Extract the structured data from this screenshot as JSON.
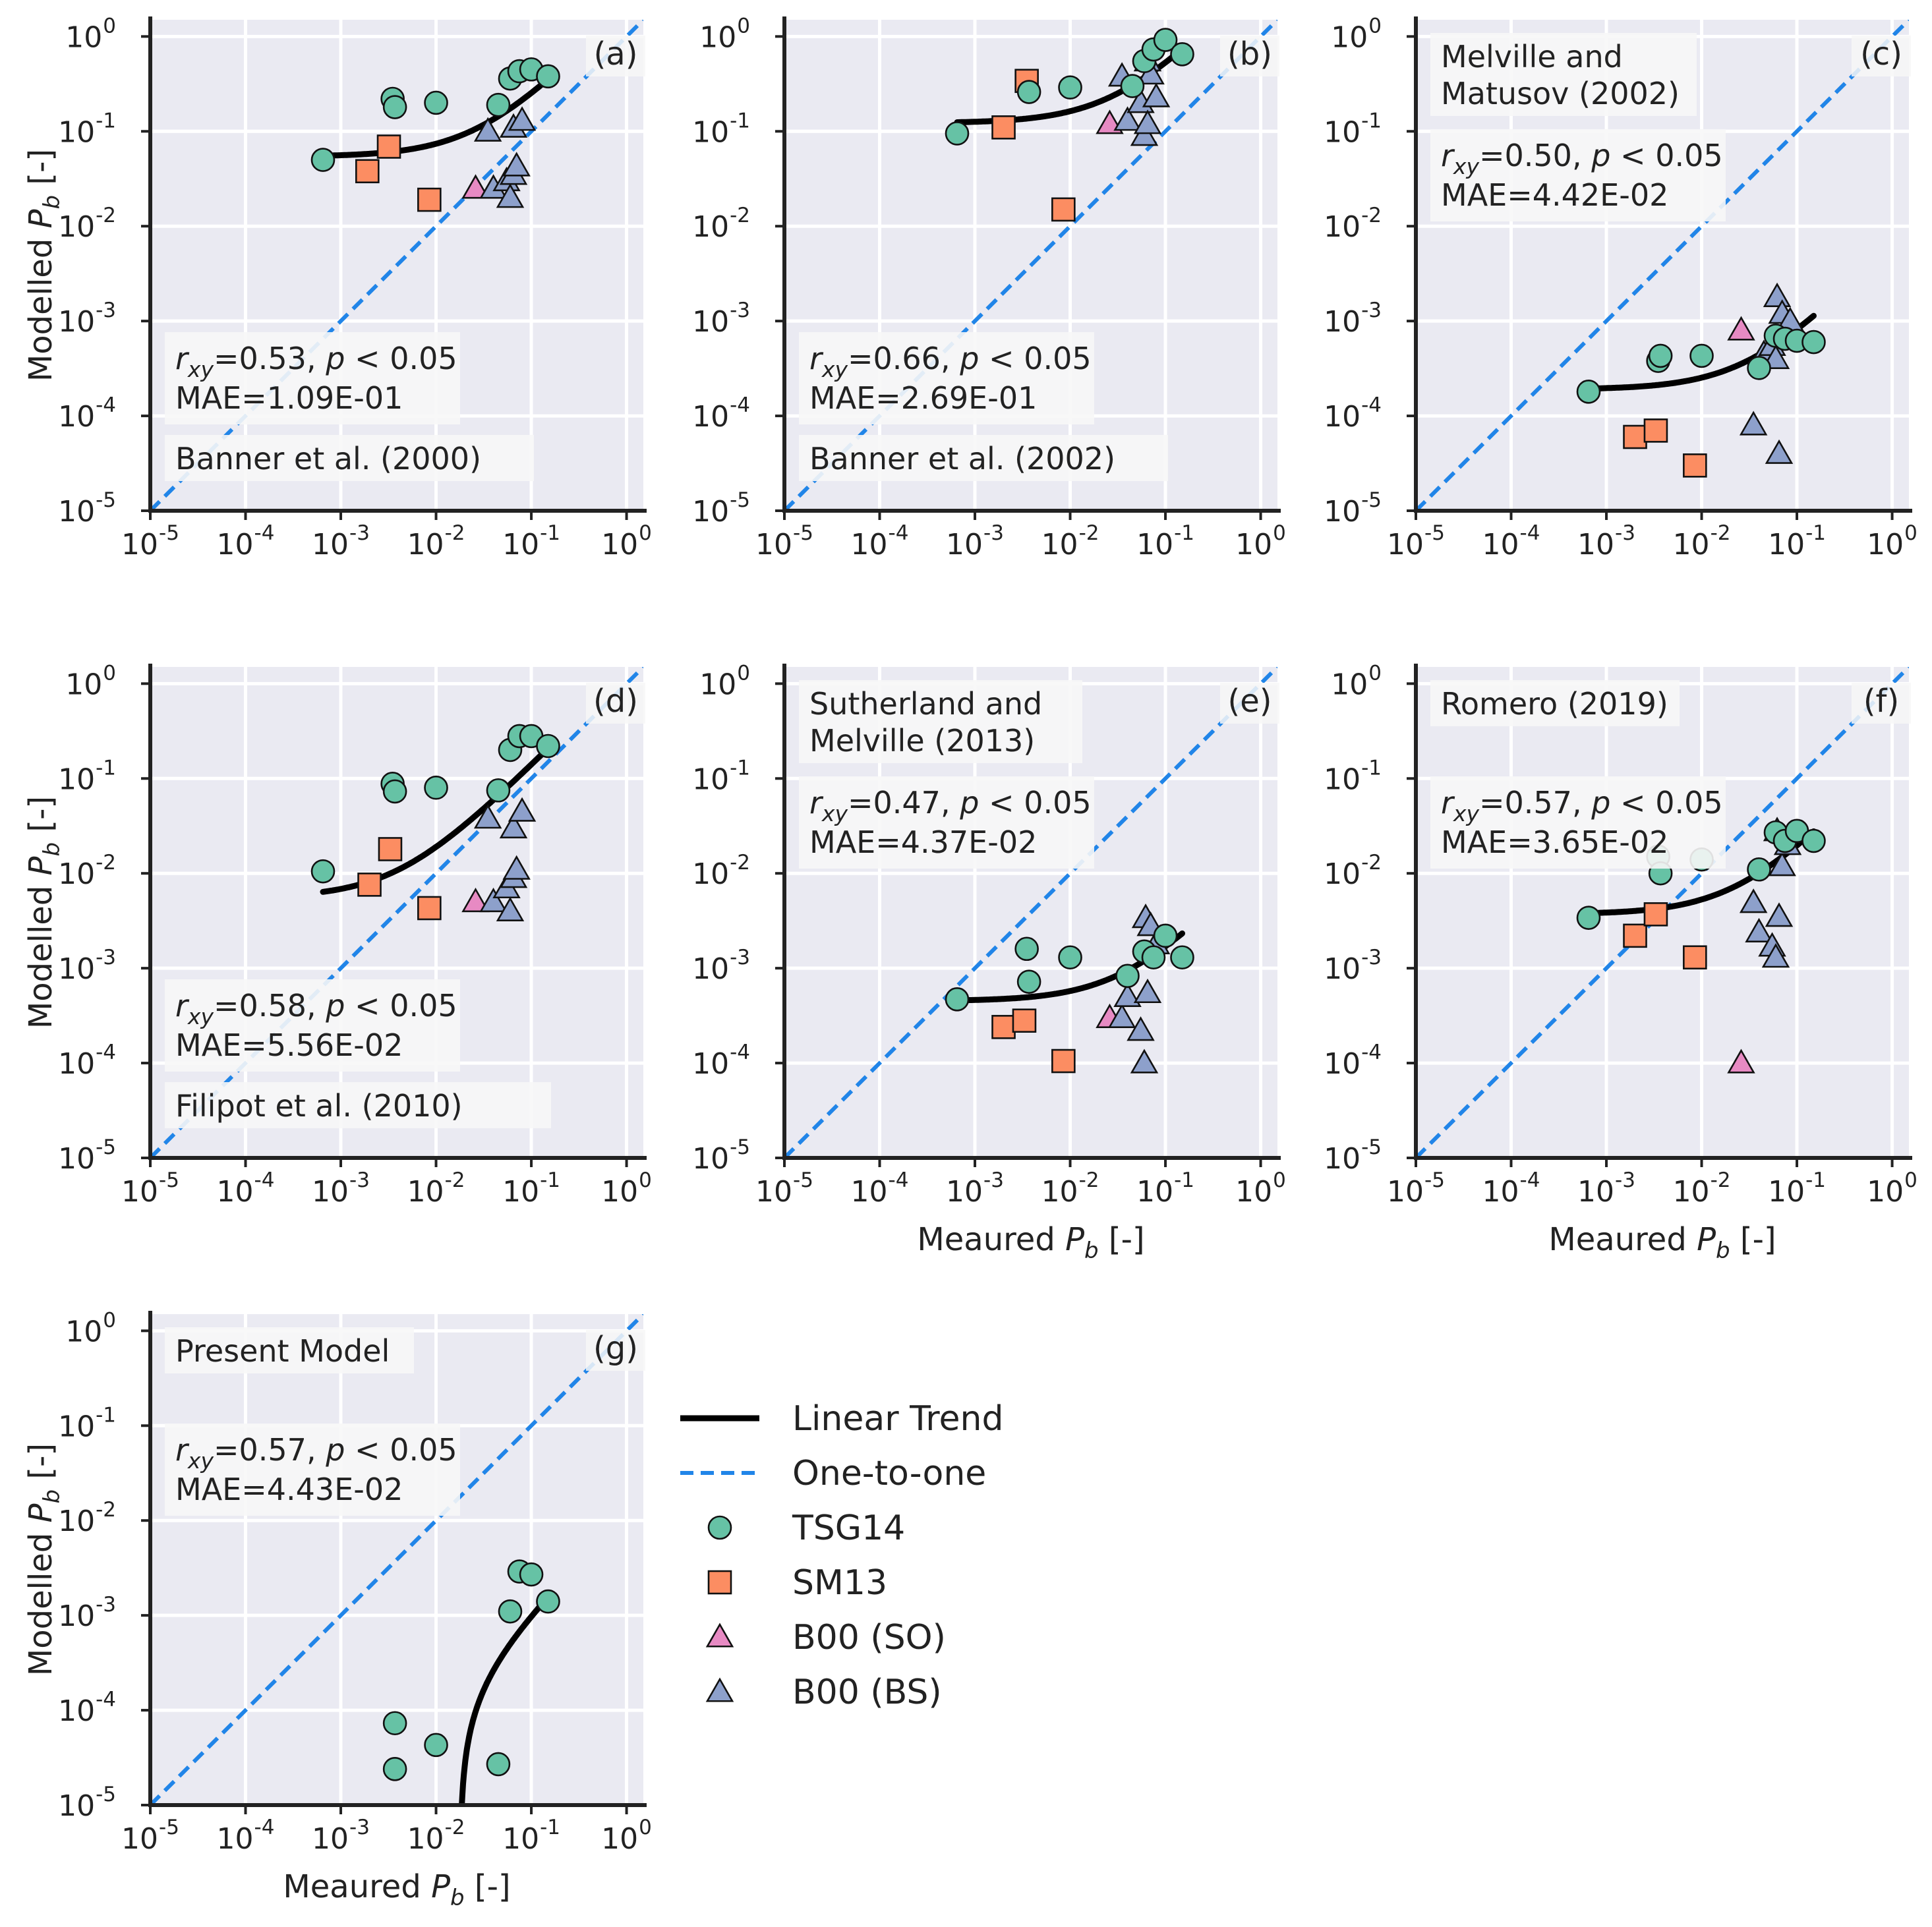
{
  "figure": {
    "xlabel_text": "Meaured",
    "ylabel_text": "Modelled",
    "var_base": "P",
    "var_sub": "b",
    "unit": "[-]"
  },
  "legend": {
    "entries": [
      {
        "key": "trend",
        "label": "Linear Trend",
        "marker": "line",
        "color": "#000000"
      },
      {
        "key": "one",
        "label": "One-to-one",
        "marker": "dashed-line",
        "color": "#2185e8"
      },
      {
        "key": "tsg14",
        "label": "TSG14",
        "marker": "circle",
        "color": "#66c2a5"
      },
      {
        "key": "sm13",
        "label": "SM13",
        "marker": "square",
        "color": "#fc8d62"
      },
      {
        "key": "b00so",
        "label": "B00 (SO)",
        "marker": "triangle",
        "color": "#e78ac3"
      },
      {
        "key": "b00bs",
        "label": "B00 (BS)",
        "marker": "triangle",
        "color": "#8da0cb"
      }
    ]
  },
  "chart_data": [
    {
      "type": "scatter",
      "panel_label": "(a)",
      "title": "Banner et al. (2000)",
      "stats": {
        "r_label": "r",
        "r_sub": "xy",
        "r_value": "=0.53, ",
        "p_label": "p",
        "p_text": " < 0.05",
        "mae": "MAE=1.09E-01"
      },
      "xlim": [
        1e-05,
        1.5
      ],
      "ylim": [
        1e-05,
        1.5
      ],
      "xscale": "log",
      "yscale": "log",
      "series": [
        {
          "name": "TSG14",
          "points": [
            [
              0.00065,
              0.05
            ],
            [
              0.0035,
              0.22
            ],
            [
              0.0037,
              0.18
            ],
            [
              0.01,
              0.2
            ],
            [
              0.045,
              0.19
            ],
            [
              0.06,
              0.36
            ],
            [
              0.075,
              0.43
            ],
            [
              0.1,
              0.45
            ],
            [
              0.15,
              0.38
            ]
          ]
        },
        {
          "name": "SM13",
          "points": [
            [
              0.0019,
              0.038
            ],
            [
              0.0032,
              0.069
            ],
            [
              0.0085,
              0.019
            ]
          ]
        },
        {
          "name": "B00 (SO)",
          "points": [
            [
              0.026,
              0.025
            ]
          ]
        },
        {
          "name": "B00 (BS)",
          "points": [
            [
              0.035,
              0.1
            ],
            [
              0.04,
              0.025
            ],
            [
              0.055,
              0.03
            ],
            [
              0.06,
              0.02
            ],
            [
              0.065,
              0.11
            ],
            [
              0.065,
              0.035
            ],
            [
              0.07,
              0.043
            ],
            [
              0.08,
              0.13
            ]
          ]
        }
      ],
      "trend": {
        "slope": 2.0,
        "intercept": 0.054
      }
    },
    {
      "type": "scatter",
      "panel_label": "(b)",
      "title": "Banner et al. (2002)",
      "stats": {
        "r_label": "r",
        "r_sub": "xy",
        "r_value": "=0.66, ",
        "p_label": "p",
        "p_text": " < 0.05",
        "mae": "MAE=2.69E-01"
      },
      "xlim": [
        1e-05,
        1.5
      ],
      "ylim": [
        1e-05,
        1.5
      ],
      "xscale": "log",
      "yscale": "log",
      "series": [
        {
          "name": "TSG14",
          "points": [
            [
              0.00065,
              0.095
            ],
            [
              0.0037,
              0.26
            ],
            [
              0.01,
              0.29
            ],
            [
              0.045,
              0.3
            ],
            [
              0.06,
              0.55
            ],
            [
              0.075,
              0.73
            ],
            [
              0.1,
              0.92
            ],
            [
              0.15,
              0.65
            ]
          ]
        },
        {
          "name": "SM13",
          "points": [
            [
              0.002,
              0.11
            ],
            [
              0.0035,
              0.34
            ],
            [
              0.0085,
              0.015
            ]
          ]
        },
        {
          "name": "B00 (SO)",
          "points": [
            [
              0.026,
              0.12
            ]
          ]
        },
        {
          "name": "B00 (BS)",
          "points": [
            [
              0.035,
              0.38
            ],
            [
              0.04,
              0.13
            ],
            [
              0.055,
              0.2
            ],
            [
              0.06,
              0.09
            ],
            [
              0.065,
              0.55
            ],
            [
              0.065,
              0.12
            ],
            [
              0.07,
              0.4
            ],
            [
              0.08,
              0.23
            ]
          ]
        }
      ],
      "trend": {
        "slope": 4.1,
        "intercept": 0.122
      }
    },
    {
      "type": "scatter",
      "panel_label": "(c)",
      "title_lines": [
        "Melville and",
        "Matusov (2002)"
      ],
      "stats": {
        "r_label": "r",
        "r_sub": "xy",
        "r_value": "=0.50, ",
        "p_label": "p",
        "p_text": " < 0.05",
        "mae": "MAE=4.42E-02"
      },
      "xlim": [
        1e-05,
        1.5
      ],
      "ylim": [
        1e-05,
        1.5
      ],
      "xscale": "log",
      "yscale": "log",
      "series": [
        {
          "name": "TSG14",
          "points": [
            [
              0.00065,
              0.00018
            ],
            [
              0.0035,
              0.00038
            ],
            [
              0.0037,
              0.00043
            ],
            [
              0.01,
              0.00043
            ],
            [
              0.04,
              0.00032
            ],
            [
              0.06,
              0.0007
            ],
            [
              0.075,
              0.00065
            ],
            [
              0.1,
              0.00062
            ],
            [
              0.15,
              0.0006
            ]
          ]
        },
        {
          "name": "SM13",
          "points": [
            [
              0.002,
              6e-05
            ],
            [
              0.0033,
              7e-05
            ],
            [
              0.0085,
              3e-05
            ]
          ]
        },
        {
          "name": "B00 (SO)",
          "points": [
            [
              0.026,
              0.0008
            ]
          ]
        },
        {
          "name": "B00 (BS)",
          "points": [
            [
              0.035,
              8e-05
            ],
            [
              0.045,
              0.00045
            ],
            [
              0.055,
              0.00055
            ],
            [
              0.06,
              0.0004
            ],
            [
              0.062,
              0.0018
            ],
            [
              0.065,
              4e-05
            ],
            [
              0.07,
              0.0012
            ],
            [
              0.085,
              0.001
            ]
          ]
        }
      ],
      "trend": {
        "slope": 0.0063,
        "intercept": 0.00019
      }
    },
    {
      "type": "scatter",
      "panel_label": "(d)",
      "title": "Filipot et al. (2010)",
      "stats": {
        "r_label": "r",
        "r_sub": "xy",
        "r_value": "=0.58, ",
        "p_label": "p",
        "p_text": " < 0.05",
        "mae": "MAE=5.56E-02"
      },
      "xlim": [
        1e-05,
        1.5
      ],
      "ylim": [
        1e-05,
        1.5
      ],
      "xscale": "log",
      "yscale": "log",
      "series": [
        {
          "name": "TSG14",
          "points": [
            [
              0.00065,
              0.0105
            ],
            [
              0.0035,
              0.088
            ],
            [
              0.0037,
              0.073
            ],
            [
              0.01,
              0.08
            ],
            [
              0.045,
              0.075
            ],
            [
              0.06,
              0.2
            ],
            [
              0.075,
              0.28
            ],
            [
              0.1,
              0.28
            ],
            [
              0.15,
              0.22
            ]
          ]
        },
        {
          "name": "SM13",
          "points": [
            [
              0.002,
              0.0076
            ],
            [
              0.0033,
              0.018
            ],
            [
              0.0085,
              0.0043
            ]
          ]
        },
        {
          "name": "B00 (SO)",
          "points": [
            [
              0.026,
              0.005
            ]
          ]
        },
        {
          "name": "B00 (BS)",
          "points": [
            [
              0.035,
              0.038
            ],
            [
              0.04,
              0.005
            ],
            [
              0.055,
              0.007
            ],
            [
              0.06,
              0.004
            ],
            [
              0.065,
              0.03
            ],
            [
              0.065,
              0.009
            ],
            [
              0.07,
              0.011
            ],
            [
              0.08,
              0.045
            ]
          ]
        }
      ],
      "trend": {
        "slope": 1.35,
        "intercept": 0.0055
      }
    },
    {
      "type": "scatter",
      "panel_label": "(e)",
      "title_lines": [
        "Sutherland and",
        "Melville (2013)"
      ],
      "stats": {
        "r_label": "r",
        "r_sub": "xy",
        "r_value": "=0.47, ",
        "p_label": "p",
        "p_text": " < 0.05",
        "mae": "MAE=4.37E-02"
      },
      "xlim": [
        1e-05,
        1.5
      ],
      "ylim": [
        1e-05,
        1.5
      ],
      "xscale": "log",
      "yscale": "log",
      "series": [
        {
          "name": "TSG14",
          "points": [
            [
              0.00065,
              0.00047
            ],
            [
              0.0035,
              0.0016
            ],
            [
              0.0037,
              0.00072
            ],
            [
              0.01,
              0.0013
            ],
            [
              0.04,
              0.00083
            ],
            [
              0.06,
              0.0015
            ],
            [
              0.075,
              0.0013
            ],
            [
              0.1,
              0.0022
            ],
            [
              0.15,
              0.0013
            ]
          ]
        },
        {
          "name": "SM13",
          "points": [
            [
              0.002,
              0.00024
            ],
            [
              0.0033,
              0.00028
            ],
            [
              0.0085,
              0.000105
            ]
          ]
        },
        {
          "name": "B00 (SO)",
          "points": [
            [
              0.026,
              0.0003
            ]
          ]
        },
        {
          "name": "B00 (BS)",
          "points": [
            [
              0.035,
              0.0003
            ],
            [
              0.04,
              0.0005
            ],
            [
              0.055,
              0.00022
            ],
            [
              0.06,
              0.0001
            ],
            [
              0.062,
              0.0034
            ],
            [
              0.065,
              0.00055
            ],
            [
              0.07,
              0.0028
            ],
            [
              0.08,
              0.0018
            ]
          ]
        }
      ],
      "trend": {
        "slope": 0.0125,
        "intercept": 0.00045
      }
    },
    {
      "type": "scatter",
      "panel_label": "(f)",
      "title": "Romero (2019)",
      "stats": {
        "r_label": "r",
        "r_sub": "xy",
        "r_value": "=0.57, ",
        "p_label": "p",
        "p_text": " < 0.05",
        "mae": "MAE=3.65E-02"
      },
      "xlim": [
        1e-05,
        1.5
      ],
      "ylim": [
        1e-05,
        1.5
      ],
      "xscale": "log",
      "yscale": "log",
      "series": [
        {
          "name": "TSG14",
          "points": [
            [
              0.00065,
              0.0034
            ],
            [
              0.0035,
              0.015
            ],
            [
              0.0037,
              0.01
            ],
            [
              0.01,
              0.014
            ],
            [
              0.04,
              0.011
            ],
            [
              0.06,
              0.027
            ],
            [
              0.075,
              0.022
            ],
            [
              0.1,
              0.028
            ],
            [
              0.15,
              0.022
            ]
          ]
        },
        {
          "name": "SM13",
          "points": [
            [
              0.002,
              0.0022
            ],
            [
              0.0033,
              0.0037
            ],
            [
              0.0085,
              0.0013
            ]
          ]
        },
        {
          "name": "B00 (SO)",
          "points": [
            [
              0.026,
              0.0001
            ]
          ]
        },
        {
          "name": "B00 (BS)",
          "points": [
            [
              0.035,
              0.0049
            ],
            [
              0.04,
              0.0024
            ],
            [
              0.055,
              0.0017
            ],
            [
              0.06,
              0.0013
            ],
            [
              0.062,
              0.028
            ],
            [
              0.065,
              0.0035
            ],
            [
              0.07,
              0.012
            ],
            [
              0.08,
              0.02
            ]
          ]
        }
      ],
      "trend": {
        "slope": 0.16,
        "intercept": 0.0037
      }
    },
    {
      "type": "scatter",
      "panel_label": "(g)",
      "title": "Present Model",
      "stats": {
        "r_label": "r",
        "r_sub": "xy",
        "r_value": "=0.57, ",
        "p_label": "p",
        "p_text": " < 0.05",
        "mae": "MAE=4.43E-02"
      },
      "xlim": [
        1e-05,
        1.5
      ],
      "ylim": [
        1e-05,
        1.5
      ],
      "xscale": "log",
      "yscale": "log",
      "series": [
        {
          "name": "TSG14",
          "points": [
            [
              0.0037,
              7.3e-05
            ],
            [
              0.0037,
              2.4e-05
            ],
            [
              0.01,
              4.3e-05
            ],
            [
              0.045,
              2.7e-05
            ],
            [
              0.06,
              0.0011
            ],
            [
              0.075,
              0.0029
            ],
            [
              0.1,
              0.0027
            ],
            [
              0.15,
              0.0014
            ]
          ]
        }
      ],
      "trend": {
        "slope": 0.0118,
        "intercept": -0.00021
      }
    }
  ]
}
